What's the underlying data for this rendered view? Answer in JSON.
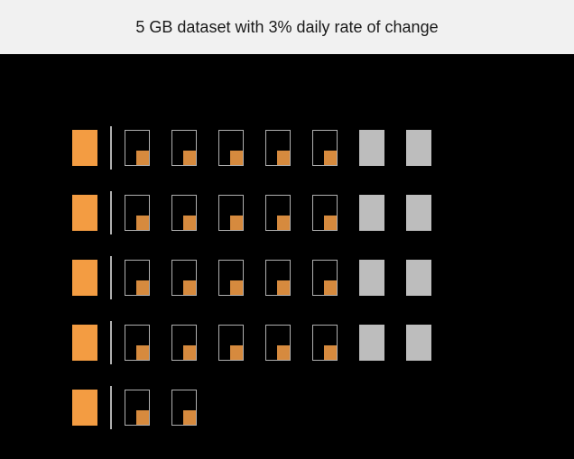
{
  "header": {
    "title": "5 GB dataset with 3% daily rate of change",
    "background_color": "#f1f1f1",
    "title_color": "#1a1a1a",
    "title_fontsize": 18
  },
  "diagram": {
    "background_color": "#000000",
    "full_block_color": "#f39c42",
    "partial_border_color": "#b0b0b0",
    "partial_fill_color": "#d68a3e",
    "gray_block_color": "#bdbdbd",
    "divider_color": "#b0b0b0",
    "block_width": 28,
    "block_height": 40,
    "partial_fill_width": 14,
    "partial_fill_height": 16,
    "row_gap": 24,
    "cell_gap": 24,
    "rows": [
      {
        "full": 1,
        "partial": 5,
        "gray": 2
      },
      {
        "full": 1,
        "partial": 5,
        "gray": 2
      },
      {
        "full": 1,
        "partial": 5,
        "gray": 2
      },
      {
        "full": 1,
        "partial": 5,
        "gray": 2
      },
      {
        "full": 1,
        "partial": 2,
        "gray": 0
      }
    ]
  }
}
